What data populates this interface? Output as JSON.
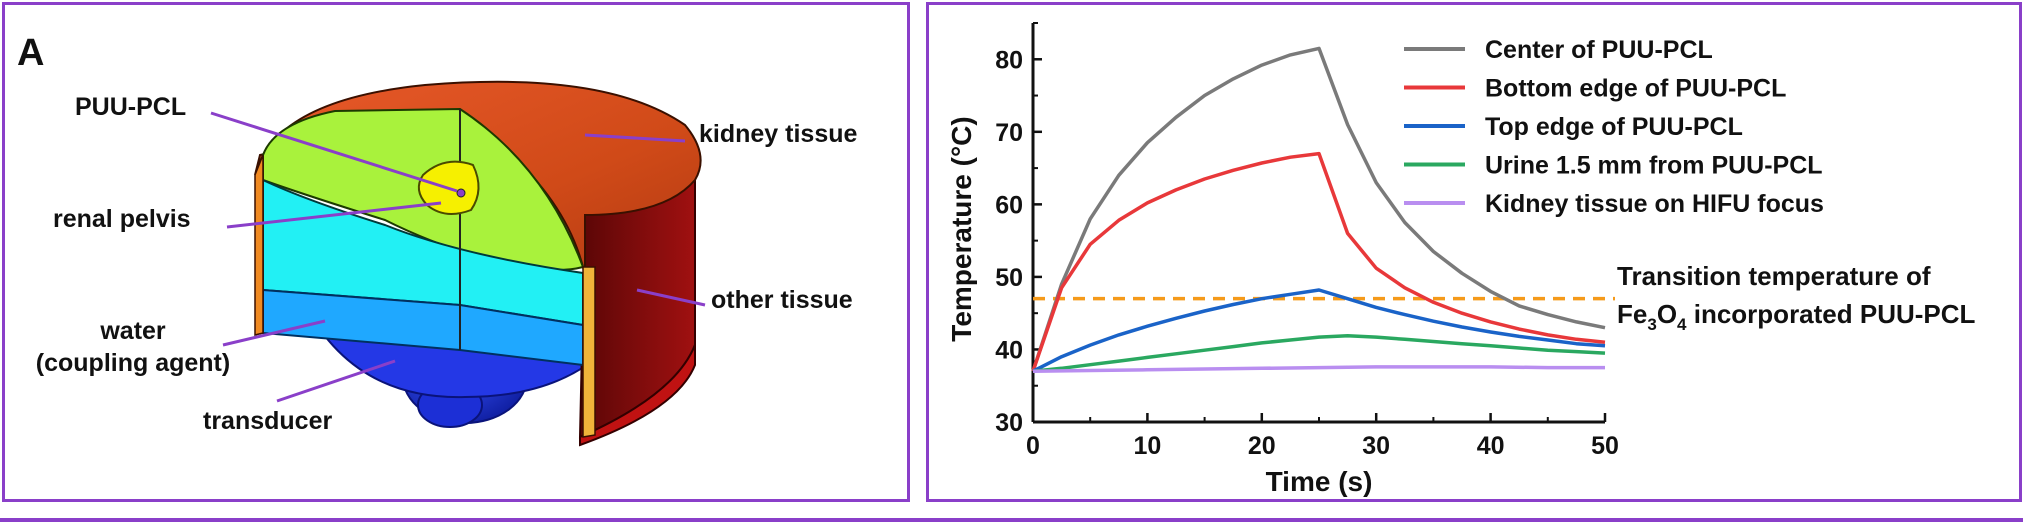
{
  "panel_a": {
    "letter": "A",
    "labels": {
      "puu_pcl": "PUU-PCL",
      "renal_pelvis": "renal pelvis",
      "water_line1": "water",
      "water_line2": "(coupling agent)",
      "transducer": "transducer",
      "kidney_tissue": "kidney tissue",
      "other_tissue": "other tissue"
    },
    "colors": {
      "kidney_dome": "#d6471a",
      "cut_face": "#a9f23c",
      "renal_pelvis": "#f6f000",
      "water": "#1fa8ff",
      "cyan_layer": "#22f0f4",
      "other_tissue": "#7a0b0b",
      "transducer": "#1a2fd8",
      "leader_line": "#8a3fc9"
    }
  },
  "chart_data": {
    "type": "line",
    "xlabel": "Time (s)",
    "ylabel": "Temperature (°C)",
    "xlim": [
      0,
      50
    ],
    "ylim": [
      30,
      85
    ],
    "xticks": [
      "0",
      "10",
      "20",
      "30",
      "40",
      "50"
    ],
    "yticks": [
      "30",
      "40",
      "50",
      "60",
      "70",
      "80"
    ],
    "legend_position": "top-right",
    "grid": false,
    "series": [
      {
        "name": "Center of PUU-PCL",
        "color": "#7a7a7a",
        "x": [
          0,
          2.5,
          5,
          7.5,
          10,
          12.5,
          15,
          17.5,
          20,
          22.5,
          25,
          27.5,
          30,
          32.5,
          35,
          37.5,
          40,
          42.5,
          45,
          47.5,
          50
        ],
        "y": [
          37,
          49,
          58,
          64,
          68.5,
          72,
          75,
          77.3,
          79.2,
          80.6,
          81.5,
          71,
          63,
          57.5,
          53.5,
          50.5,
          48,
          46,
          44.8,
          43.8,
          43
        ]
      },
      {
        "name": "Bottom edge of PUU-PCL",
        "color": "#e8383a",
        "x": [
          0,
          2.5,
          5,
          7.5,
          10,
          12.5,
          15,
          17.5,
          20,
          22.5,
          25,
          27.5,
          30,
          32.5,
          35,
          37.5,
          40,
          42.5,
          45,
          47.5,
          50
        ],
        "y": [
          37,
          48.5,
          54.5,
          57.8,
          60.2,
          62,
          63.5,
          64.7,
          65.7,
          66.5,
          67,
          56,
          51.2,
          48.5,
          46.5,
          45,
          43.8,
          42.8,
          42,
          41.4,
          41
        ]
      },
      {
        "name": "Top edge of PUU-PCL",
        "color": "#1a63c8",
        "x": [
          0,
          2.5,
          5,
          7.5,
          10,
          12.5,
          15,
          17.5,
          20,
          22.5,
          25,
          27.5,
          30,
          32.5,
          35,
          37.5,
          40,
          42.5,
          45,
          47.5,
          50
        ],
        "y": [
          37,
          39,
          40.6,
          42,
          43.2,
          44.3,
          45.3,
          46.2,
          47,
          47.6,
          48.2,
          47,
          45.8,
          44.8,
          43.9,
          43.1,
          42.4,
          41.8,
          41.3,
          40.8,
          40.5
        ]
      },
      {
        "name": "Urine 1.5 mm from PUU-PCL",
        "color": "#2aa860",
        "x": [
          0,
          2.5,
          5,
          7.5,
          10,
          12.5,
          15,
          17.5,
          20,
          22.5,
          25,
          27.5,
          30,
          32.5,
          35,
          37.5,
          40,
          42.5,
          45,
          47.5,
          50
        ],
        "y": [
          37,
          37.4,
          37.9,
          38.4,
          38.9,
          39.4,
          39.9,
          40.4,
          40.9,
          41.3,
          41.7,
          41.9,
          41.7,
          41.4,
          41.1,
          40.8,
          40.5,
          40.2,
          39.9,
          39.7,
          39.5
        ]
      },
      {
        "name": "Kidney tissue on HIFU focus",
        "color": "#b98ef0",
        "x": [
          0,
          5,
          10,
          15,
          20,
          25,
          30,
          35,
          40,
          45,
          50
        ],
        "y": [
          37,
          37.1,
          37.2,
          37.3,
          37.4,
          37.5,
          37.6,
          37.6,
          37.6,
          37.5,
          37.5
        ]
      }
    ],
    "reference_line": {
      "y": 47,
      "color": "#f59a1a",
      "style": "dashed"
    },
    "annotation": {
      "line1": "Transition temperature of",
      "line2_prefix": "Fe",
      "line2_sub1": "3",
      "line2_mid": "O",
      "line2_sub2": "4",
      "line2_suffix": " incorporated PUU-PCL"
    }
  }
}
